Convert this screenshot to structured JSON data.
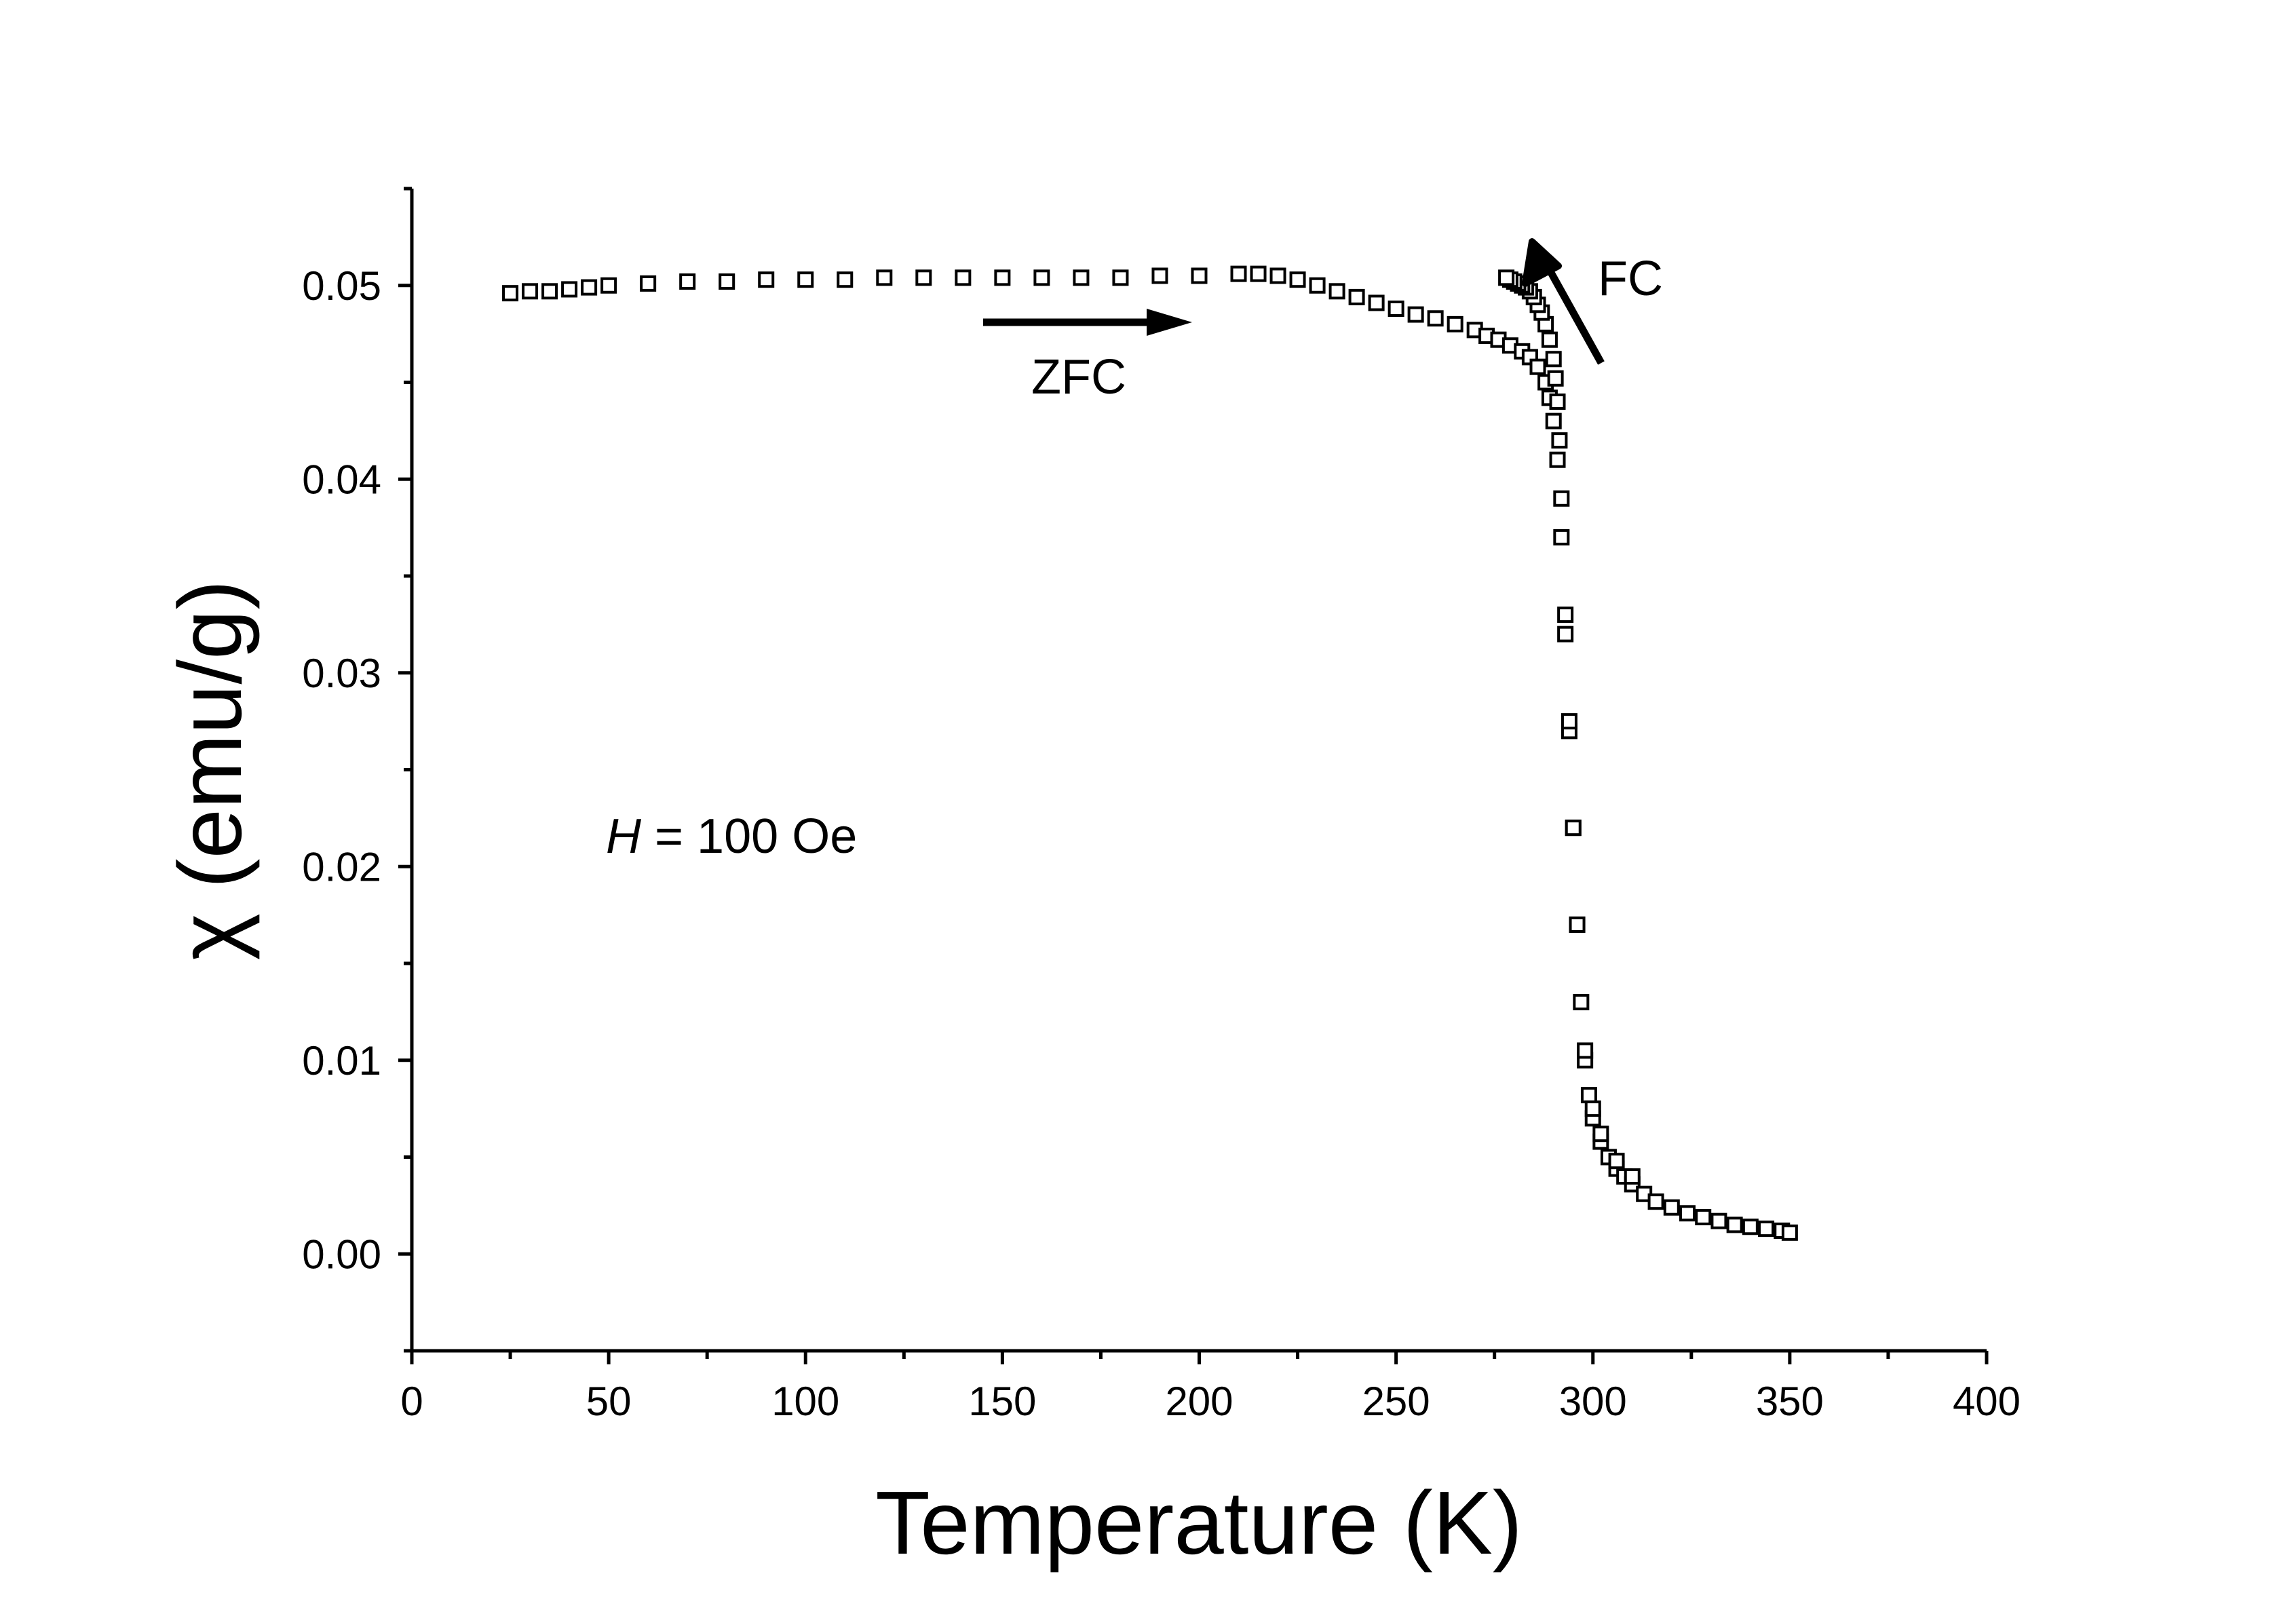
{
  "chart_data": {
    "type": "scatter",
    "title": "",
    "xlabel": "Temperature (K)",
    "ylabel": "χ (emu/g)",
    "xlim": [
      0,
      400
    ],
    "ylim": [
      -0.005,
      0.055
    ],
    "xticks": [
      0,
      50,
      100,
      150,
      200,
      250,
      300,
      350,
      400
    ],
    "xtick_labels": [
      "0",
      "50",
      "100",
      "150",
      "200",
      "250",
      "300",
      "350",
      "400"
    ],
    "yticks": [
      0.0,
      0.01,
      0.02,
      0.03,
      0.04,
      0.05
    ],
    "ytick_labels": [
      "0.00",
      "0.01",
      "0.02",
      "0.03",
      "0.04",
      "0.05"
    ],
    "grid": false,
    "marker_color": "#000000",
    "series": [
      {
        "name": "ZFC",
        "x": [
          25,
          30,
          35,
          40,
          45,
          50,
          60,
          70,
          80,
          90,
          100,
          110,
          120,
          130,
          140,
          150,
          160,
          170,
          180,
          190,
          200,
          210,
          215,
          220,
          225,
          230,
          235,
          240,
          245,
          250,
          255,
          260,
          265,
          270,
          273,
          276,
          279,
          282,
          284,
          286,
          288,
          289,
          290,
          291,
          292,
          293,
          294,
          295,
          296,
          297,
          298,
          299,
          300,
          302,
          304,
          306,
          308,
          310,
          313,
          316,
          320,
          324,
          328,
          332,
          336,
          340,
          344,
          348,
          350
        ],
        "y": [
          0.0496,
          0.0497,
          0.0497,
          0.0498,
          0.0499,
          0.05,
          0.0501,
          0.0502,
          0.0502,
          0.0503,
          0.0503,
          0.0503,
          0.0504,
          0.0504,
          0.0504,
          0.0504,
          0.0504,
          0.0504,
          0.0504,
          0.0505,
          0.0505,
          0.0506,
          0.0506,
          0.0505,
          0.0503,
          0.05,
          0.0497,
          0.0494,
          0.0491,
          0.0488,
          0.0485,
          0.0483,
          0.048,
          0.0477,
          0.0474,
          0.0472,
          0.0469,
          0.0466,
          0.0463,
          0.0458,
          0.045,
          0.0442,
          0.043,
          0.041,
          0.037,
          0.032,
          0.027,
          0.022,
          0.017,
          0.013,
          0.01,
          0.0082,
          0.007,
          0.0058,
          0.005,
          0.0044,
          0.004,
          0.0036,
          0.0031,
          0.0027,
          0.0024,
          0.0021,
          0.0019,
          0.0017,
          0.0015,
          0.0014,
          0.0013,
          0.0012,
          0.0011
        ]
      },
      {
        "name": "FC",
        "x": [
          310,
          306,
          302,
          300,
          298,
          296,
          295,
          294,
          293,
          292,
          291.5,
          291,
          290.5,
          290,
          289,
          288,
          287,
          286,
          285,
          284,
          283,
          282,
          281,
          280,
          279,
          278
        ],
        "y": [
          0.004,
          0.0048,
          0.0062,
          0.0075,
          0.0105,
          0.017,
          0.022,
          0.0275,
          0.033,
          0.039,
          0.042,
          0.044,
          0.0452,
          0.0462,
          0.0472,
          0.048,
          0.0486,
          0.049,
          0.0494,
          0.0497,
          0.0499,
          0.05,
          0.0501,
          0.0502,
          0.0503,
          0.0504
        ]
      }
    ],
    "annotations": {
      "zfc_label": "ZFC",
      "fc_label": "FC",
      "field_symbol": "H",
      "field_value": " = 100 Oe"
    }
  }
}
